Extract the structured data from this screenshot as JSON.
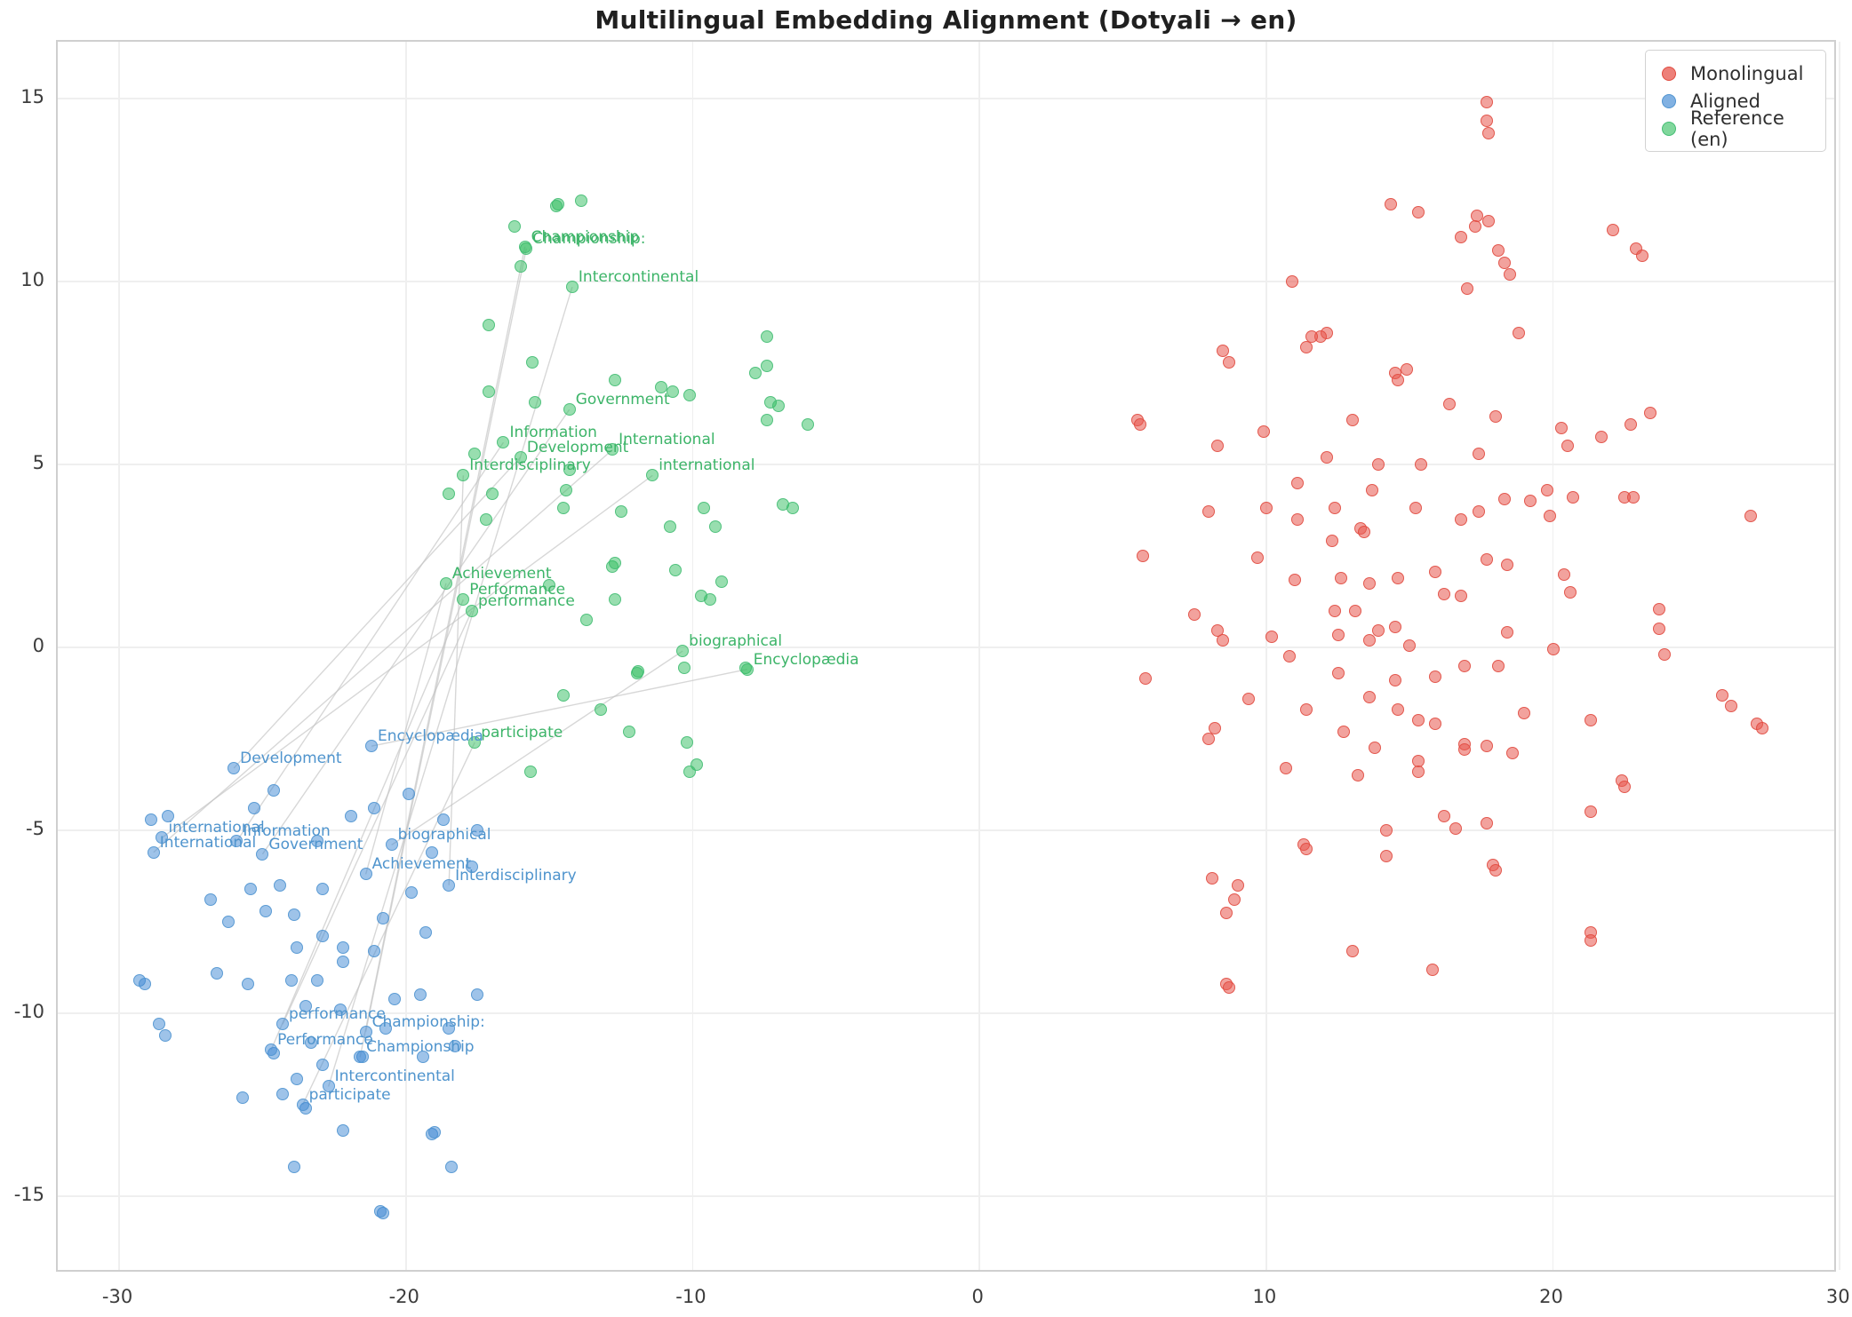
{
  "title": "Multilingual Embedding Alignment (Dotyali → en)",
  "legend": {
    "items": [
      {
        "label": "Monolingual",
        "fill": "rgba(231,86,76,0.75)",
        "edge": "#e04a3f"
      },
      {
        "label": "Aligned",
        "fill": "rgba(62,135,211,0.65)",
        "edge": "#5094d0"
      },
      {
        "label": "Reference (en)",
        "fill": "rgba(50,190,96,0.62)",
        "edge": "#44bd74"
      }
    ]
  },
  "chart_data": {
    "type": "scatter",
    "title": "Multilingual Embedding Alignment (Dotyali → en)",
    "xlabel": "",
    "ylabel": "",
    "grid": true,
    "legend_position": "upper right",
    "xlim": [
      -32.14,
      29.93
    ],
    "ylim": [
      -17.11,
      16.55
    ],
    "xticks": [
      -30,
      -20,
      -10,
      0,
      10,
      20,
      30
    ],
    "yticks": [
      -15,
      -10,
      -5,
      0,
      5,
      10,
      15
    ],
    "series": [
      {
        "name": "Monolingual",
        "marker_class": "pt-mono",
        "points": [
          [
            17.7,
            14.9
          ],
          [
            17.7,
            14.4
          ],
          [
            17.75,
            14.05
          ],
          [
            14.35,
            12.1
          ],
          [
            15.3,
            11.9
          ],
          [
            17.35,
            11.8
          ],
          [
            17.75,
            11.65
          ],
          [
            17.3,
            11.5
          ],
          [
            16.8,
            11.2
          ],
          [
            22.1,
            11.4
          ],
          [
            18.1,
            10.85
          ],
          [
            22.9,
            10.9
          ],
          [
            23.1,
            10.7
          ],
          [
            18.3,
            10.5
          ],
          [
            18.5,
            10.2
          ],
          [
            10.9,
            10.0
          ],
          [
            17.0,
            9.8
          ],
          [
            18.8,
            8.6
          ],
          [
            12.1,
            8.6
          ],
          [
            11.9,
            8.5
          ],
          [
            11.6,
            8.5
          ],
          [
            11.4,
            8.2
          ],
          [
            8.5,
            8.1
          ],
          [
            8.7,
            7.8
          ],
          [
            14.9,
            7.6
          ],
          [
            14.5,
            7.5
          ],
          [
            14.6,
            7.3
          ],
          [
            16.4,
            6.65
          ],
          [
            5.5,
            6.2
          ],
          [
            5.6,
            6.1
          ],
          [
            18.0,
            6.3
          ],
          [
            13.0,
            6.2
          ],
          [
            9.9,
            5.9
          ],
          [
            8.3,
            5.5
          ],
          [
            20.3,
            6.0
          ],
          [
            20.5,
            5.5
          ],
          [
            23.4,
            6.4
          ],
          [
            22.7,
            6.1
          ],
          [
            21.7,
            5.75
          ],
          [
            12.1,
            5.2
          ],
          [
            13.9,
            5.0
          ],
          [
            15.4,
            5.0
          ],
          [
            11.1,
            4.5
          ],
          [
            13.7,
            4.3
          ],
          [
            17.4,
            5.3
          ],
          [
            18.3,
            4.05
          ],
          [
            19.2,
            4.0
          ],
          [
            19.8,
            4.3
          ],
          [
            19.9,
            3.6
          ],
          [
            20.7,
            4.1
          ],
          [
            22.5,
            4.1
          ],
          [
            22.8,
            4.1
          ],
          [
            26.9,
            3.6
          ],
          [
            8.0,
            3.7
          ],
          [
            10.0,
            3.8
          ],
          [
            11.1,
            3.5
          ],
          [
            12.4,
            3.8
          ],
          [
            15.2,
            3.8
          ],
          [
            16.8,
            3.5
          ],
          [
            17.4,
            3.7
          ],
          [
            13.3,
            3.25
          ],
          [
            13.4,
            3.15
          ],
          [
            12.3,
            2.9
          ],
          [
            5.7,
            2.5
          ],
          [
            9.7,
            2.45
          ],
          [
            11.0,
            1.85
          ],
          [
            12.6,
            1.9
          ],
          [
            13.6,
            1.75
          ],
          [
            14.6,
            1.9
          ],
          [
            15.9,
            2.05
          ],
          [
            17.7,
            2.4
          ],
          [
            18.4,
            2.25
          ],
          [
            20.4,
            2.0
          ],
          [
            20.6,
            1.5
          ],
          [
            16.2,
            1.45
          ],
          [
            16.8,
            1.4
          ],
          [
            7.5,
            0.9
          ],
          [
            8.3,
            0.45
          ],
          [
            8.5,
            0.2
          ],
          [
            10.2,
            0.3
          ],
          [
            10.8,
            -0.25
          ],
          [
            12.4,
            1.0
          ],
          [
            13.1,
            1.0
          ],
          [
            12.5,
            0.35
          ],
          [
            13.9,
            0.45
          ],
          [
            13.6,
            0.2
          ],
          [
            14.5,
            0.55
          ],
          [
            15.0,
            0.05
          ],
          [
            18.4,
            0.4
          ],
          [
            20.0,
            -0.05
          ],
          [
            23.7,
            1.05
          ],
          [
            23.7,
            0.5
          ],
          [
            23.9,
            -0.2
          ],
          [
            12.5,
            -0.7
          ],
          [
            13.6,
            -1.35
          ],
          [
            14.5,
            -0.9
          ],
          [
            15.9,
            -0.8
          ],
          [
            16.9,
            -0.5
          ],
          [
            18.1,
            -0.5
          ],
          [
            5.8,
            -0.85
          ],
          [
            9.4,
            -1.4
          ],
          [
            11.4,
            -1.7
          ],
          [
            14.6,
            -1.7
          ],
          [
            15.3,
            -2.0
          ],
          [
            15.9,
            -2.1
          ],
          [
            12.7,
            -2.3
          ],
          [
            19.0,
            -1.8
          ],
          [
            21.3,
            -2.0
          ],
          [
            25.9,
            -1.3
          ],
          [
            26.2,
            -1.6
          ],
          [
            27.1,
            -2.1
          ],
          [
            27.3,
            -2.2
          ],
          [
            8.2,
            -2.2
          ],
          [
            8.0,
            -2.5
          ],
          [
            13.8,
            -2.75
          ],
          [
            16.9,
            -2.65
          ],
          [
            16.9,
            -2.8
          ],
          [
            17.7,
            -2.7
          ],
          [
            18.6,
            -2.9
          ],
          [
            15.3,
            -3.1
          ],
          [
            15.3,
            -3.4
          ],
          [
            10.7,
            -3.3
          ],
          [
            13.2,
            -3.5
          ],
          [
            22.4,
            -3.65
          ],
          [
            22.5,
            -3.8
          ],
          [
            21.3,
            -4.5
          ],
          [
            16.2,
            -4.6
          ],
          [
            16.6,
            -4.95
          ],
          [
            17.7,
            -4.8
          ],
          [
            14.2,
            -5.0
          ],
          [
            11.3,
            -5.4
          ],
          [
            11.4,
            -5.5
          ],
          [
            14.2,
            -5.7
          ],
          [
            17.9,
            -5.95
          ],
          [
            18.0,
            -6.1
          ],
          [
            8.1,
            -6.3
          ],
          [
            9.0,
            -6.5
          ],
          [
            8.9,
            -6.9
          ],
          [
            8.6,
            -7.25
          ],
          [
            21.3,
            -7.8
          ],
          [
            21.3,
            -8.0
          ],
          [
            13.0,
            -8.3
          ],
          [
            15.8,
            -8.8
          ],
          [
            8.6,
            -9.2
          ],
          [
            8.7,
            -9.3
          ]
        ]
      },
      {
        "name": "Aligned",
        "marker_class": "pt-align",
        "points": [
          [
            -28.9,
            -4.7
          ],
          [
            -28.3,
            -4.6
          ],
          [
            -24.6,
            -3.9
          ],
          [
            -25.3,
            -4.4
          ],
          [
            -21.9,
            -4.6
          ],
          [
            -21.1,
            -4.4
          ],
          [
            -19.9,
            -4.0
          ],
          [
            -18.7,
            -4.7
          ],
          [
            -17.5,
            -5.0
          ],
          [
            -23.1,
            -5.3
          ],
          [
            -19.1,
            -5.6
          ],
          [
            -17.7,
            -6.0
          ],
          [
            -25.4,
            -6.6
          ],
          [
            -24.4,
            -6.5
          ],
          [
            -22.9,
            -6.6
          ],
          [
            -26.8,
            -6.9
          ],
          [
            -19.8,
            -6.7
          ],
          [
            -24.9,
            -7.2
          ],
          [
            -23.9,
            -7.3
          ],
          [
            -26.2,
            -7.5
          ],
          [
            -20.8,
            -7.4
          ],
          [
            -19.3,
            -7.8
          ],
          [
            -22.9,
            -7.9
          ],
          [
            -23.8,
            -8.2
          ],
          [
            -22.2,
            -8.2
          ],
          [
            -21.1,
            -8.3
          ],
          [
            -22.2,
            -8.6
          ],
          [
            -26.6,
            -8.9
          ],
          [
            -29.3,
            -9.1
          ],
          [
            -29.1,
            -9.2
          ],
          [
            -25.5,
            -9.2
          ],
          [
            -24.0,
            -9.1
          ],
          [
            -23.1,
            -9.1
          ],
          [
            -20.4,
            -9.6
          ],
          [
            -19.5,
            -9.5
          ],
          [
            -17.5,
            -9.5
          ],
          [
            -23.5,
            -9.8
          ],
          [
            -22.3,
            -9.9
          ],
          [
            -28.6,
            -10.3
          ],
          [
            -28.4,
            -10.6
          ],
          [
            -20.7,
            -10.4
          ],
          [
            -18.5,
            -10.4
          ],
          [
            -23.3,
            -10.8
          ],
          [
            -18.3,
            -10.9
          ],
          [
            -24.6,
            -11.1
          ],
          [
            -21.5,
            -11.2
          ],
          [
            -19.4,
            -11.2
          ],
          [
            -22.9,
            -11.4
          ],
          [
            -23.8,
            -11.8
          ],
          [
            -24.3,
            -12.2
          ],
          [
            -25.7,
            -12.3
          ],
          [
            -23.5,
            -12.6
          ],
          [
            -22.2,
            -13.2
          ],
          [
            -19.1,
            -13.3
          ],
          [
            -19.0,
            -13.25
          ],
          [
            -23.9,
            -14.2
          ],
          [
            -18.4,
            -14.2
          ],
          [
            -20.8,
            -15.45
          ],
          [
            -20.9,
            -15.4
          ]
        ]
      },
      {
        "name": "Reference (en)",
        "marker_class": "pt-ref",
        "points": [
          [
            -14.7,
            12.1
          ],
          [
            -14.75,
            12.05
          ],
          [
            -13.9,
            12.2
          ],
          [
            -16.2,
            11.5
          ],
          [
            -16.0,
            10.4
          ],
          [
            -17.1,
            8.8
          ],
          [
            -15.6,
            7.8
          ],
          [
            -17.1,
            7.0
          ],
          [
            -15.5,
            6.7
          ],
          [
            -12.7,
            7.3
          ],
          [
            -11.1,
            7.1
          ],
          [
            -10.7,
            7.0
          ],
          [
            -10.1,
            6.9
          ],
          [
            -7.4,
            8.5
          ],
          [
            -7.8,
            7.5
          ],
          [
            -7.4,
            7.7
          ],
          [
            -7.3,
            6.7
          ],
          [
            -7.0,
            6.6
          ],
          [
            -7.4,
            6.2
          ],
          [
            -6.0,
            6.1
          ],
          [
            -17.6,
            5.3
          ],
          [
            -18.5,
            4.2
          ],
          [
            -17.0,
            4.2
          ],
          [
            -17.2,
            3.5
          ],
          [
            -14.3,
            4.85
          ],
          [
            -14.4,
            4.3
          ],
          [
            -14.5,
            3.8
          ],
          [
            -12.5,
            3.7
          ],
          [
            -9.6,
            3.8
          ],
          [
            -6.85,
            3.9
          ],
          [
            -6.5,
            3.8
          ],
          [
            -9.2,
            3.3
          ],
          [
            -10.8,
            3.3
          ],
          [
            -12.8,
            2.2
          ],
          [
            -12.7,
            2.3
          ],
          [
            -10.6,
            2.1
          ],
          [
            -15.0,
            1.7
          ],
          [
            -9.7,
            1.4
          ],
          [
            -9.4,
            1.3
          ],
          [
            -9.0,
            1.8
          ],
          [
            -12.7,
            1.3
          ],
          [
            -13.7,
            0.75
          ],
          [
            -11.9,
            -0.65
          ],
          [
            -11.95,
            -0.7
          ],
          [
            -10.3,
            -0.55
          ],
          [
            -8.15,
            -0.55
          ],
          [
            -14.5,
            -1.3
          ],
          [
            -13.2,
            -1.7
          ],
          [
            -12.2,
            -2.3
          ],
          [
            -10.2,
            -2.6
          ],
          [
            -9.85,
            -3.2
          ],
          [
            -10.1,
            -3.4
          ],
          [
            -15.65,
            -3.4
          ]
        ]
      }
    ],
    "alignment_pairs": [
      {
        "word": "Development",
        "aligned": [
          -26.0,
          -3.3
        ],
        "reference": [
          -16.0,
          5.2
        ]
      },
      {
        "word": "Encyclopædia",
        "aligned": [
          -21.2,
          -2.7
        ],
        "reference": [
          -8.1,
          -0.6
        ]
      },
      {
        "word": "international",
        "aligned": [
          -28.5,
          -5.2
        ],
        "reference": [
          -11.4,
          4.7
        ]
      },
      {
        "word": "International",
        "aligned": [
          -28.8,
          -5.6
        ],
        "reference": [
          -12.8,
          5.4
        ]
      },
      {
        "word": "Information",
        "aligned": [
          -25.9,
          -5.3
        ],
        "reference": [
          -16.6,
          5.6
        ]
      },
      {
        "word": "Government",
        "aligned": [
          -25.0,
          -5.65
        ],
        "reference": [
          -14.3,
          6.5
        ]
      },
      {
        "word": "biographical",
        "aligned": [
          -20.5,
          -5.4
        ],
        "reference": [
          -10.35,
          -0.1
        ]
      },
      {
        "word": "Achievement",
        "aligned": [
          -21.4,
          -6.2
        ],
        "reference": [
          -18.6,
          1.75
        ]
      },
      {
        "word": "Interdisciplinary",
        "aligned": [
          -18.5,
          -6.5
        ],
        "reference": [
          -18.0,
          4.7
        ]
      },
      {
        "word": "performance",
        "aligned": [
          -24.3,
          -10.3
        ],
        "reference": [
          -17.7,
          1.0
        ]
      },
      {
        "word": "Performance",
        "aligned": [
          -24.7,
          -11.0
        ],
        "reference": [
          -18.0,
          1.3
        ]
      },
      {
        "word": "Championship:",
        "aligned": [
          -21.4,
          -10.5
        ],
        "reference": [
          -15.8,
          10.9
        ]
      },
      {
        "word": "Championship",
        "aligned": [
          -21.6,
          -11.2
        ],
        "reference": [
          -15.85,
          10.95
        ]
      },
      {
        "word": "Intercontinental",
        "aligned": [
          -22.7,
          -12.0
        ],
        "reference": [
          -14.2,
          9.85
        ]
      },
      {
        "word": "participate",
        "aligned": [
          -23.6,
          -12.5
        ],
        "reference": [
          -17.6,
          -2.6
        ]
      }
    ],
    "connection_line_color": "#c3c3c3"
  }
}
